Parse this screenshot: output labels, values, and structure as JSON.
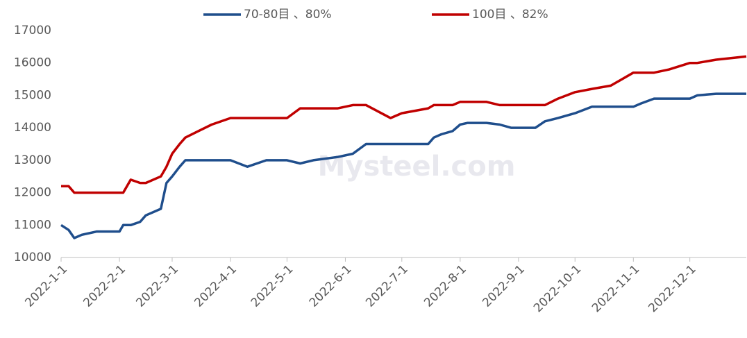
{
  "chart_data": {
    "type": "line",
    "watermark": "Mysteel.com",
    "x": [
      "2022-1-1",
      "2022-1-5",
      "2022-1-8",
      "2022-1-12",
      "2022-1-20",
      "2022-2-1",
      "2022-2-3",
      "2022-2-7",
      "2022-2-12",
      "2022-2-15",
      "2022-2-23",
      "2022-2-26",
      "2022-3-1",
      "2022-3-5",
      "2022-3-8",
      "2022-3-15",
      "2022-3-22",
      "2022-4-1",
      "2022-4-10",
      "2022-4-20",
      "2022-5-1",
      "2022-5-8",
      "2022-5-15",
      "2022-5-28",
      "2022-6-5",
      "2022-6-12",
      "2022-6-25",
      "2022-7-1",
      "2022-7-15",
      "2022-7-18",
      "2022-7-22",
      "2022-7-28",
      "2022-8-1",
      "2022-8-5",
      "2022-8-15",
      "2022-8-22",
      "2022-8-28",
      "2022-9-1",
      "2022-9-10",
      "2022-9-15",
      "2022-9-22",
      "2022-10-1",
      "2022-10-10",
      "2022-10-20",
      "2022-11-1",
      "2022-11-5",
      "2022-11-12",
      "2022-11-20",
      "2022-12-1",
      "2022-12-5",
      "2022-12-15",
      "2022-12-31"
    ],
    "series": [
      {
        "name": "70-80目 、80%",
        "color": "#1f4e8c",
        "values": [
          11000,
          10850,
          10600,
          10700,
          10800,
          10800,
          11000,
          11000,
          11100,
          11300,
          11500,
          12300,
          12500,
          12800,
          13000,
          13000,
          13000,
          13000,
          12800,
          13000,
          13000,
          12900,
          13000,
          13100,
          13200,
          13500,
          13500,
          13500,
          13500,
          13700,
          13800,
          13900,
          14100,
          14150,
          14150,
          14100,
          14000,
          14000,
          14000,
          14200,
          14300,
          14450,
          14650,
          14650,
          14650,
          14750,
          14900,
          14900,
          14900,
          15000,
          15050,
          15050
        ]
      },
      {
        "name": "100目 、82%",
        "color": "#c00000",
        "values": [
          12200,
          12200,
          12000,
          12000,
          12000,
          12000,
          12000,
          12400,
          12300,
          12300,
          12500,
          12800,
          13200,
          13500,
          13700,
          13900,
          14100,
          14300,
          14300,
          14300,
          14300,
          14600,
          14600,
          14600,
          14700,
          14700,
          14300,
          14450,
          14600,
          14700,
          14700,
          14700,
          14800,
          14800,
          14800,
          14700,
          14700,
          14700,
          14700,
          14700,
          14900,
          15100,
          15200,
          15300,
          15700,
          15700,
          15700,
          15800,
          16000,
          16000,
          16100,
          16200
        ]
      }
    ],
    "xlim": [
      "2022-1-1",
      "2022-12-31"
    ],
    "xticks": [
      "2022-1-1",
      "2022-2-1",
      "2022-3-1",
      "2022-4-1",
      "2022-5-1",
      "2022-6-1",
      "2022-7-1",
      "2022-8-1",
      "2022-9-1",
      "2022-10-1",
      "2022-11-1",
      "2022-12-1"
    ],
    "ylim": [
      10000,
      17000
    ],
    "yticks": [
      10000,
      11000,
      12000,
      13000,
      14000,
      15000,
      16000,
      17000
    ],
    "legend": "top"
  }
}
